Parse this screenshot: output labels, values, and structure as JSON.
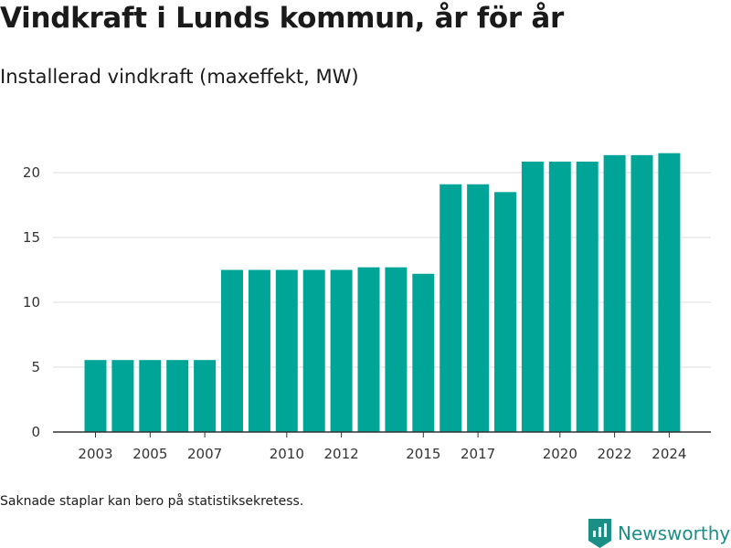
{
  "title": "Vindkraft i Lunds kommun, år för år",
  "subtitle": "Installerad vindkraft (maxeffekt, MW)",
  "footnote": "Saknade staplar kan bero på statistiksekretess.",
  "brand": {
    "name": "Newsworthy"
  },
  "colors": {
    "bar": "#00a598",
    "grid": "#dddddd",
    "axis": "#333333",
    "brand": "#1b8f86"
  },
  "chart_data": {
    "type": "bar",
    "categories": [
      "2003",
      "2004",
      "2005",
      "2006",
      "2007",
      "2008",
      "2009",
      "2010",
      "2011",
      "2012",
      "2013",
      "2014",
      "2015",
      "2016",
      "2017",
      "2018",
      "2019",
      "2020",
      "2021",
      "2022",
      "2023",
      "2024"
    ],
    "values": [
      5.55,
      5.55,
      5.55,
      5.55,
      5.55,
      12.5,
      12.5,
      12.5,
      12.5,
      12.5,
      12.7,
      12.7,
      12.2,
      19.1,
      19.1,
      18.5,
      20.85,
      20.85,
      20.85,
      21.35,
      21.35,
      21.5
    ],
    "x_tick_labels": [
      "2003",
      "2005",
      "2007",
      "2010",
      "2012",
      "2015",
      "2017",
      "2020",
      "2022",
      "2024"
    ],
    "y_ticks": [
      0,
      5,
      10,
      15,
      20
    ],
    "ylim": [
      0,
      23
    ],
    "xlabel": "",
    "ylabel": "",
    "grid": true
  }
}
